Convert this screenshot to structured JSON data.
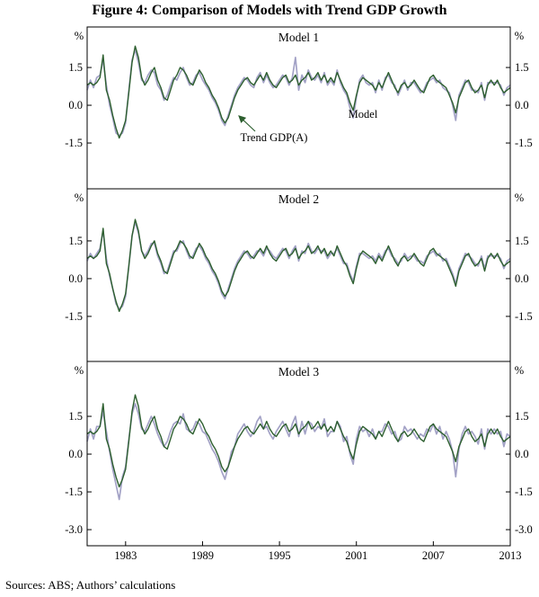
{
  "title": "Figure 4: Comparison of Models with Trend GDP Growth",
  "source_note": "Sources:  ABS; Authors’ calculations",
  "chart_data": {
    "type": "line",
    "x_start": 1980.0,
    "x_step": 0.25,
    "xlim": [
      1980.0,
      2013.0
    ],
    "x_ticks": [
      1983,
      1989,
      1995,
      2001,
      2007,
      2013
    ],
    "percent_label": "%",
    "grid": false,
    "legend": {
      "model_label": "Model",
      "trend_label": "Trend GDP(A)"
    },
    "colors": {
      "trend": "#2d5f2f",
      "model": "#a3a2c6"
    },
    "trend_values": [
      0.8,
      0.9,
      0.8,
      0.9,
      1.1,
      2.0,
      0.6,
      0.2,
      -0.4,
      -0.9,
      -1.3,
      -1.0,
      -0.6,
      0.5,
      1.7,
      2.35,
      1.9,
      1.1,
      0.8,
      1.0,
      1.3,
      1.5,
      1.0,
      0.7,
      0.3,
      0.2,
      0.6,
      1.0,
      1.2,
      1.5,
      1.4,
      1.2,
      0.9,
      0.8,
      1.1,
      1.4,
      1.2,
      0.9,
      0.7,
      0.4,
      0.2,
      -0.1,
      -0.5,
      -0.7,
      -0.5,
      -0.1,
      0.3,
      0.6,
      0.8,
      1.0,
      1.1,
      0.9,
      0.8,
      1.0,
      1.2,
      1.0,
      1.3,
      1.0,
      0.8,
      0.7,
      0.9,
      1.1,
      1.2,
      0.9,
      1.0,
      1.2,
      0.8,
      1.0,
      1.1,
      1.3,
      1.0,
      1.1,
      1.3,
      1.0,
      1.2,
      0.9,
      1.1,
      0.9,
      1.3,
      1.0,
      0.7,
      0.5,
      0.1,
      -0.2,
      0.4,
      0.9,
      1.1,
      1.0,
      0.9,
      0.8,
      0.6,
      0.9,
      0.7,
      1.0,
      1.3,
      1.0,
      0.7,
      0.5,
      0.8,
      0.9,
      0.7,
      0.8,
      1.0,
      0.8,
      0.6,
      0.5,
      0.8,
      1.1,
      1.2,
      1.0,
      0.9,
      0.8,
      0.7,
      0.4,
      0.1,
      -0.3,
      0.3,
      0.6,
      0.9,
      1.0,
      0.7,
      0.5,
      0.6,
      0.8,
      0.3,
      0.8,
      1.0,
      0.8,
      1.0,
      0.7,
      0.5,
      0.6,
      0.7
    ],
    "panels": [
      {
        "title": "Model 1",
        "ylim": [
          -3.32,
          3.11
        ],
        "yticks": [
          1.5,
          0.0,
          -1.5
        ],
        "model_values": [
          0.6,
          1.0,
          0.7,
          1.1,
          1.2,
          1.8,
          0.8,
          0.0,
          -0.5,
          -1.1,
          -1.2,
          -1.1,
          -0.7,
          0.6,
          1.8,
          2.2,
          1.7,
          1.0,
          0.9,
          1.2,
          1.4,
          1.3,
          0.8,
          0.6,
          0.2,
          0.4,
          0.8,
          1.1,
          1.0,
          1.3,
          1.5,
          1.1,
          0.8,
          0.9,
          1.2,
          1.3,
          1.0,
          0.8,
          0.6,
          0.3,
          0.1,
          -0.2,
          -0.6,
          -0.8,
          -0.4,
          0.0,
          0.4,
          0.7,
          0.9,
          1.1,
          1.0,
          0.8,
          0.7,
          1.1,
          1.3,
          0.9,
          1.2,
          0.9,
          0.7,
          0.8,
          1.0,
          1.2,
          1.1,
          0.8,
          1.1,
          1.9,
          0.6,
          1.2,
          0.9,
          1.4,
          1.1,
          1.0,
          1.2,
          0.9,
          1.3,
          0.8,
          1.0,
          0.8,
          1.4,
          0.9,
          0.6,
          0.4,
          -0.1,
          -0.5,
          0.3,
          1.0,
          1.2,
          0.9,
          0.8,
          0.9,
          0.5,
          1.0,
          0.6,
          1.1,
          1.2,
          0.9,
          0.8,
          0.4,
          0.7,
          1.0,
          0.6,
          0.9,
          0.9,
          0.7,
          0.5,
          0.6,
          0.9,
          1.0,
          1.1,
          0.9,
          1.0,
          0.7,
          0.6,
          0.5,
          0.0,
          -0.6,
          0.4,
          0.7,
          1.0,
          0.9,
          0.6,
          0.6,
          0.5,
          0.9,
          0.2,
          0.9,
          0.9,
          0.9,
          0.9,
          0.8,
          0.4,
          0.7,
          0.8
        ]
      },
      {
        "title": "Model 2",
        "ylim": [
          -3.29,
          3.57
        ],
        "yticks": [
          1.5,
          0.0,
          -1.5
        ],
        "model_values": [
          0.7,
          1.0,
          0.8,
          1.0,
          1.2,
          1.9,
          0.8,
          0.1,
          -0.4,
          -1.0,
          -1.2,
          -1.1,
          -0.7,
          0.5,
          1.7,
          2.25,
          1.8,
          1.1,
          0.9,
          1.1,
          1.4,
          1.4,
          0.9,
          0.6,
          0.2,
          0.3,
          0.7,
          1.1,
          1.1,
          1.4,
          1.5,
          1.1,
          0.8,
          0.9,
          1.2,
          1.3,
          1.1,
          0.8,
          0.6,
          0.3,
          0.1,
          -0.2,
          -0.6,
          -0.8,
          -0.4,
          0.0,
          0.4,
          0.7,
          0.9,
          1.1,
          1.0,
          0.8,
          0.9,
          1.1,
          1.1,
          0.9,
          1.2,
          1.1,
          0.9,
          0.8,
          1.0,
          1.2,
          1.1,
          0.8,
          1.1,
          1.3,
          0.7,
          1.1,
          1.0,
          1.4,
          1.1,
          1.0,
          1.2,
          1.1,
          1.1,
          0.8,
          1.0,
          1.0,
          1.2,
          0.9,
          0.6,
          0.6,
          0.2,
          -0.1,
          0.5,
          1.0,
          1.0,
          0.9,
          0.8,
          0.9,
          0.7,
          1.0,
          0.8,
          1.1,
          1.2,
          0.9,
          0.8,
          0.6,
          0.7,
          1.0,
          0.8,
          0.9,
          0.9,
          0.7,
          0.7,
          0.6,
          0.9,
          1.0,
          1.1,
          0.9,
          1.0,
          0.7,
          0.8,
          0.5,
          0.2,
          -0.2,
          0.4,
          0.7,
          1.0,
          0.9,
          0.8,
          0.6,
          0.5,
          0.9,
          0.4,
          0.9,
          0.9,
          0.9,
          0.9,
          0.8,
          0.4,
          0.7,
          0.8
        ]
      },
      {
        "title": "Model 3",
        "ylim": [
          -3.64,
          3.68
        ],
        "yticks": [
          1.5,
          0.0,
          -1.5,
          -3.0
        ],
        "model_values": [
          0.5,
          1.0,
          0.6,
          1.1,
          1.1,
          1.7,
          0.9,
          0.1,
          -0.6,
          -1.2,
          -1.8,
          -0.9,
          -0.5,
          0.6,
          1.6,
          2.0,
          1.6,
          1.0,
          0.9,
          1.2,
          1.5,
          1.2,
          0.8,
          0.5,
          0.3,
          0.5,
          0.9,
          1.2,
          1.3,
          1.2,
          1.6,
          1.0,
          0.9,
          1.0,
          1.3,
          1.2,
          0.9,
          0.8,
          0.5,
          0.2,
          0.0,
          -0.3,
          -0.7,
          -1.0,
          -0.5,
          0.1,
          0.3,
          0.8,
          1.0,
          1.2,
          0.9,
          0.7,
          0.9,
          1.3,
          1.5,
          1.0,
          1.1,
          0.8,
          0.6,
          0.9,
          1.1,
          1.3,
          1.0,
          0.7,
          1.2,
          1.5,
          0.7,
          1.3,
          0.8,
          1.3,
          1.2,
          0.9,
          1.1,
          1.0,
          1.4,
          0.7,
          0.9,
          0.9,
          1.3,
          1.1,
          0.5,
          0.7,
          0.0,
          -0.4,
          0.6,
          1.1,
          0.9,
          1.0,
          0.7,
          1.0,
          0.6,
          0.9,
          0.9,
          1.2,
          1.1,
          0.8,
          0.9,
          0.5,
          0.6,
          1.1,
          0.9,
          1.0,
          0.8,
          0.6,
          0.8,
          0.7,
          1.0,
          0.9,
          1.2,
          0.8,
          1.1,
          0.6,
          0.9,
          0.6,
          0.1,
          -0.9,
          0.2,
          0.8,
          1.1,
          0.8,
          0.9,
          0.7,
          0.4,
          1.0,
          0.2,
          1.0,
          0.8,
          1.0,
          0.8,
          0.9,
          0.3,
          0.8,
          0.7
        ]
      }
    ]
  }
}
